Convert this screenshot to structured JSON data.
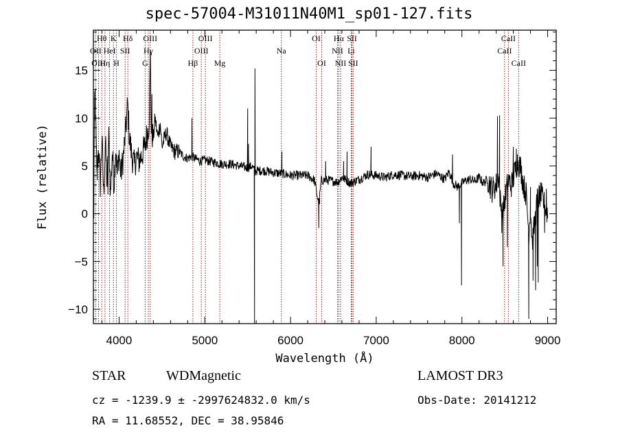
{
  "chart_data": {
    "type": "line",
    "title": "spec-57004-M31011N40M1_sp01-127.fits",
    "xlabel": "Wavelength (Å)",
    "ylabel": "Flux (relative)",
    "xlim": [
      3700,
      9100
    ],
    "ylim": [
      -11.5,
      19.2
    ],
    "xticks": [
      4000,
      5000,
      6000,
      7000,
      8000,
      9000
    ],
    "yticks": [
      -10,
      -5,
      0,
      5,
      10,
      15
    ],
    "grid": false,
    "line_color": "#000000",
    "marker_color": "#8b1a1a",
    "markers": [
      {
        "label": "Hθ",
        "x": 3798,
        "row": 0
      },
      {
        "label": "OII",
        "x": 3727,
        "row": 1
      },
      {
        "label": "OIII",
        "x": 3760,
        "row": 2
      },
      {
        "label": "Hη",
        "x": 3835,
        "row": 2
      },
      {
        "label": "HeI",
        "x": 3889,
        "row": 1
      },
      {
        "label": "K",
        "x": 3934,
        "row": 0
      },
      {
        "label": "H",
        "x": 3969,
        "row": 2
      },
      {
        "label": "SII",
        "x": 4070,
        "row": 1
      },
      {
        "label": "Hδ",
        "x": 4102,
        "row": 0
      },
      {
        "label": "G",
        "x": 4304,
        "row": 2
      },
      {
        "label": "Hγ",
        "x": 4341,
        "row": 1
      },
      {
        "label": "OIII",
        "x": 4363,
        "row": 0
      },
      {
        "label": "Hβ",
        "x": 4861,
        "row": 2
      },
      {
        "label": "OIII",
        "x": 4959,
        "row": 1
      },
      {
        "label": "OIII",
        "x": 5007,
        "row": 0
      },
      {
        "label": "Mg",
        "x": 5175,
        "row": 2
      },
      {
        "label": "Na",
        "x": 5893,
        "row": 1
      },
      {
        "label": "OI",
        "x": 6300,
        "row": 0
      },
      {
        "label": "OI",
        "x": 6364,
        "row": 2
      },
      {
        "label": "NII",
        "x": 6548,
        "row": 1
      },
      {
        "label": "Hα",
        "x": 6563,
        "row": 0
      },
      {
        "label": "NII",
        "x": 6584,
        "row": 2
      },
      {
        "label": "Li",
        "x": 6708,
        "row": 1
      },
      {
        "label": "SII",
        "x": 6717,
        "row": 0
      },
      {
        "label": "SII",
        "x": 6731,
        "row": 2
      },
      {
        "label": "CaII",
        "x": 8498,
        "row": 1
      },
      {
        "label": "CaII",
        "x": 8542,
        "row": 0
      },
      {
        "label": "CaII",
        "x": 8662,
        "row": 2
      }
    ],
    "series_anchors": [
      [
        3700,
        2
      ],
      [
        3720,
        12.5
      ],
      [
        3740,
        4
      ],
      [
        3760,
        7
      ],
      [
        3780,
        3
      ],
      [
        3800,
        8
      ],
      [
        3820,
        2
      ],
      [
        3840,
        7.5
      ],
      [
        3860,
        3
      ],
      [
        3880,
        8
      ],
      [
        3900,
        2
      ],
      [
        3920,
        6.5
      ],
      [
        3940,
        3
      ],
      [
        3960,
        7
      ],
      [
        3980,
        4
      ],
      [
        4000,
        6.5
      ],
      [
        4020,
        4
      ],
      [
        4050,
        6
      ],
      [
        4080,
        9
      ],
      [
        4100,
        11.5
      ],
      [
        4120,
        8
      ],
      [
        4150,
        6
      ],
      [
        4180,
        5
      ],
      [
        4200,
        6
      ],
      [
        4230,
        5.5
      ],
      [
        4260,
        6
      ],
      [
        4300,
        7
      ],
      [
        4330,
        8.5
      ],
      [
        4350,
        9.5
      ],
      [
        4365,
        17
      ],
      [
        4375,
        8.5
      ],
      [
        4400,
        8
      ],
      [
        4420,
        10
      ],
      [
        4450,
        8
      ],
      [
        4480,
        9.5
      ],
      [
        4500,
        7
      ],
      [
        4550,
        8.5
      ],
      [
        4600,
        7
      ],
      [
        4650,
        6.5
      ],
      [
        4700,
        6.5
      ],
      [
        4750,
        6
      ],
      [
        4800,
        5.8
      ],
      [
        4850,
        6
      ],
      [
        4900,
        5.7
      ],
      [
        4950,
        5.5
      ],
      [
        5000,
        5.6
      ],
      [
        5100,
        5.4
      ],
      [
        5200,
        5.2
      ],
      [
        5300,
        5.2
      ],
      [
        5400,
        5.0
      ],
      [
        5500,
        4.8
      ],
      [
        5550,
        5
      ],
      [
        5580,
        4.5
      ],
      [
        5600,
        4.5
      ],
      [
        5700,
        4.5
      ],
      [
        5800,
        4.3
      ],
      [
        5900,
        4.2
      ],
      [
        6000,
        4.0
      ],
      [
        6100,
        4.0
      ],
      [
        6200,
        4.0
      ],
      [
        6280,
        3.5
      ],
      [
        6300,
        2.5
      ],
      [
        6330,
        1
      ],
      [
        6360,
        3.5
      ],
      [
        6450,
        3.5
      ],
      [
        6550,
        3.3
      ],
      [
        6600,
        3.8
      ],
      [
        6700,
        3.2
      ],
      [
        6800,
        3.6
      ],
      [
        6900,
        4.1
      ],
      [
        7000,
        4.0
      ],
      [
        7100,
        3.8
      ],
      [
        7200,
        4.1
      ],
      [
        7300,
        4.0
      ],
      [
        7400,
        3.9
      ],
      [
        7500,
        4.0
      ],
      [
        7600,
        3.8
      ],
      [
        7700,
        4.2
      ],
      [
        7800,
        3.6
      ],
      [
        7850,
        4.4
      ],
      [
        7900,
        3.2
      ],
      [
        7950,
        2.8
      ],
      [
        8000,
        3.2
      ],
      [
        8050,
        3.5
      ],
      [
        8100,
        3.6
      ],
      [
        8150,
        3.4
      ],
      [
        8200,
        3.8
      ],
      [
        8250,
        3.2
      ],
      [
        8300,
        3.6
      ],
      [
        8350,
        2.5
      ],
      [
        8400,
        3.0
      ],
      [
        8430,
        4
      ],
      [
        8450,
        1
      ],
      [
        8480,
        0
      ],
      [
        8500,
        1.5
      ],
      [
        8540,
        3.5
      ],
      [
        8580,
        3
      ],
      [
        8620,
        4.5
      ],
      [
        8650,
        5.5
      ],
      [
        8680,
        5.0
      ],
      [
        8700,
        4.0
      ],
      [
        8720,
        3.0
      ],
      [
        8750,
        2.0
      ],
      [
        8780,
        -2
      ],
      [
        8800,
        0.5
      ],
      [
        8820,
        -3
      ],
      [
        8850,
        -1
      ],
      [
        8880,
        1.5
      ],
      [
        8920,
        2.0
      ],
      [
        8960,
        1.0
      ],
      [
        9000,
        0
      ]
    ],
    "spikes": [
      [
        3705,
        -0.5
      ],
      [
        3716,
        12.8
      ],
      [
        3745,
        3.5
      ],
      [
        3870,
        2.0
      ],
      [
        4365,
        17.0
      ],
      [
        4383,
        12.5
      ],
      [
        4850,
        10.0
      ],
      [
        5580,
        -11.5
      ],
      [
        5585,
        15.2
      ],
      [
        5590,
        4.0
      ],
      [
        5500,
        11.0
      ],
      [
        5510,
        7.3
      ],
      [
        5900,
        6.5
      ],
      [
        6330,
        -1.5
      ],
      [
        6340,
        1.0
      ],
      [
        6410,
        5.5
      ],
      [
        6620,
        5.5
      ],
      [
        6660,
        6.5
      ],
      [
        6940,
        7.0
      ],
      [
        7280,
        4.5
      ],
      [
        7890,
        6.2
      ],
      [
        7970,
        -1.0
      ],
      [
        7995,
        -7.5
      ],
      [
        8415,
        10.2
      ],
      [
        8440,
        10.3
      ],
      [
        8465,
        -2.0
      ],
      [
        8480,
        -5.5
      ],
      [
        8530,
        -3.5
      ],
      [
        8600,
        7.0
      ],
      [
        8635,
        6.8
      ],
      [
        8780,
        -11.0
      ],
      [
        8800,
        2.8
      ],
      [
        8830,
        -7.0
      ],
      [
        8860,
        -8.0
      ],
      [
        8880,
        -5.5
      ],
      [
        8890,
        -7.2
      ],
      [
        8905,
        1.0
      ],
      [
        8930,
        3.2
      ],
      [
        8965,
        -2.0
      ],
      [
        8985,
        2.6
      ]
    ]
  },
  "footer": {
    "class_label": "STAR",
    "subclass_label": "WDMagnetic",
    "survey_label": "LAMOST DR3",
    "cz_text": "cz = -1239.9 ± -2997624832.0 km/s",
    "obs_date_text": "Obs-Date: 20141212",
    "coords_text": "RA =  11.68552, DEC =  38.95846"
  }
}
